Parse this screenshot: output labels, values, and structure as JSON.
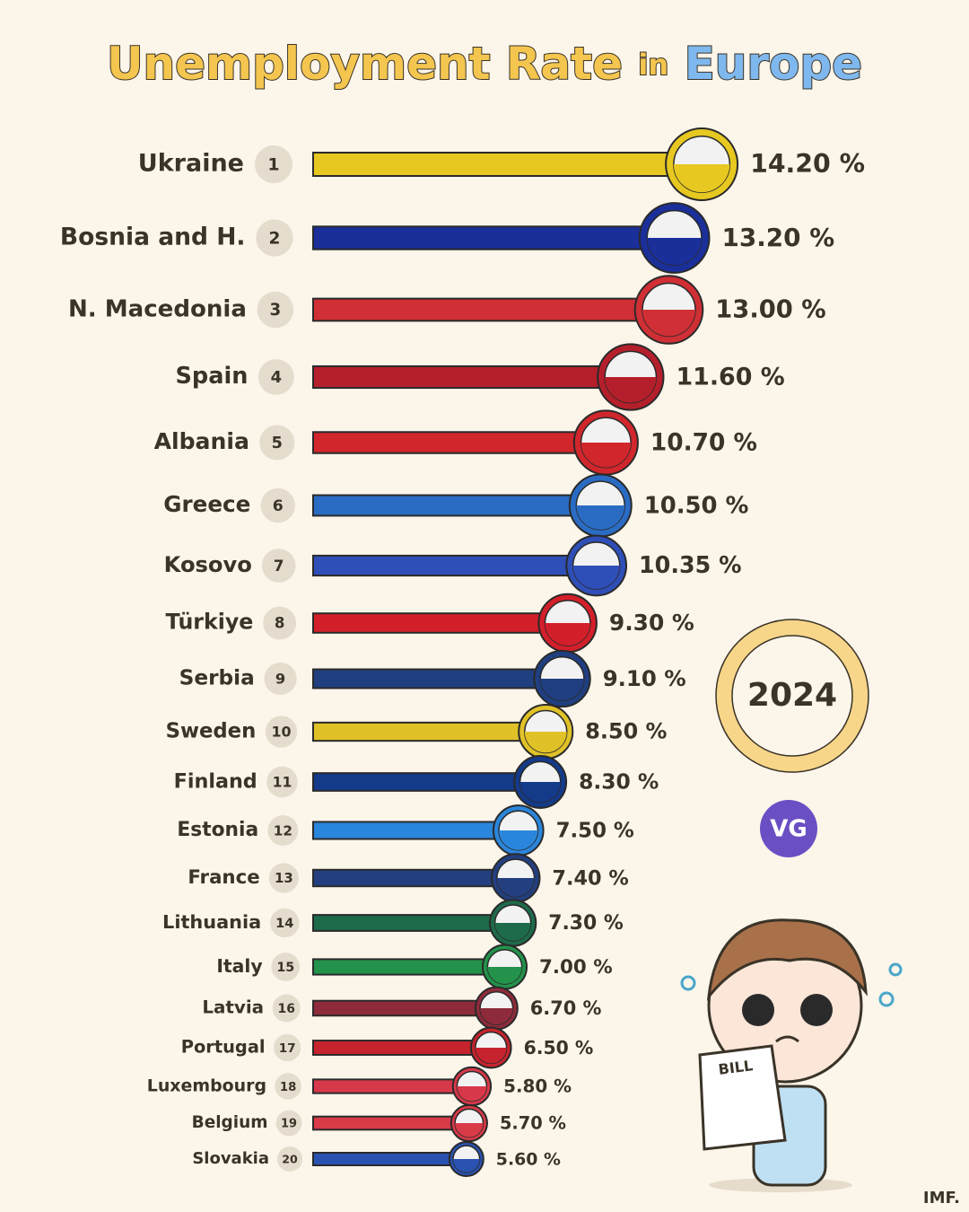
{
  "chart_data": {
    "type": "bar",
    "orientation": "horizontal",
    "title_parts": [
      "Unemployment Rate",
      "in",
      "Europe"
    ],
    "categories": [
      "Ukraine",
      "Bosnia and H.",
      "N. Macedonia",
      "Spain",
      "Albania",
      "Greece",
      "Kosovo",
      "Türkiye",
      "Serbia",
      "Sweden",
      "Finland",
      "Estonia",
      "France",
      "Lithuania",
      "Italy",
      "Latvia",
      "Portugal",
      "Luxembourg",
      "Belgium",
      "Slovakia"
    ],
    "ranks": [
      1,
      2,
      3,
      4,
      5,
      6,
      7,
      8,
      9,
      10,
      11,
      12,
      13,
      14,
      15,
      16,
      17,
      18,
      19,
      20
    ],
    "values": [
      14.2,
      13.2,
      13.0,
      11.6,
      10.7,
      10.5,
      10.35,
      9.3,
      9.1,
      8.5,
      8.3,
      7.5,
      7.4,
      7.3,
      7.0,
      6.7,
      6.5,
      5.8,
      5.7,
      5.6
    ],
    "value_labels": [
      "14.20 %",
      "13.20 %",
      "13.00 %",
      "11.60 %",
      "10.70 %",
      "10.50 %",
      "10.35 %",
      "9.30 %",
      "9.10 %",
      "8.50 %",
      "8.30 %",
      "7.50 %",
      "7.40 %",
      "7.30 %",
      "7.00 %",
      "6.70 %",
      "6.50 %",
      "5.80 %",
      "5.70 %",
      "5.60 %"
    ],
    "colors": [
      "#e6c820",
      "#1a2f9a",
      "#cf2f35",
      "#b51f2b",
      "#d0262c",
      "#2a6cc4",
      "#2f4fb8",
      "#d31f2a",
      "#1f3f80",
      "#e0c228",
      "#143a8a",
      "#2a86dc",
      "#233f80",
      "#1d6b4a",
      "#23924a",
      "#8e2b3a",
      "#c7232e",
      "#d8394a",
      "#d83a48",
      "#2a52b0"
    ],
    "year": "2024",
    "logo": "VG",
    "source": "IMF.",
    "bill": "BILL"
  }
}
